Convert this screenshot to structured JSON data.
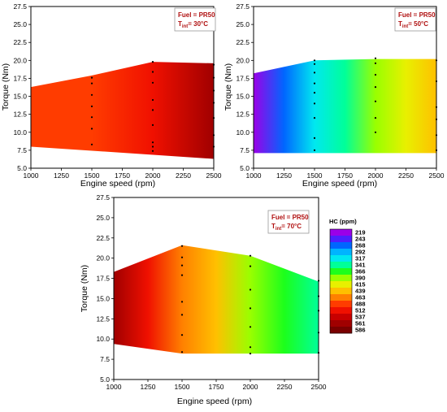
{
  "chart_data": [
    {
      "type": "heatmap",
      "subtype": "filled-contour",
      "xlabel": "Engine speed (rpm)",
      "ylabel": "Torque (Nm)",
      "xlim": [
        1000,
        2500
      ],
      "ylim": [
        5.0,
        27.5
      ],
      "xticks": [
        "1000",
        "1250",
        "1500",
        "1750",
        "2000",
        "2250",
        "2500"
      ],
      "yticks": [
        "5.0",
        "7.5",
        "10.0",
        "12.5",
        "15.0",
        "17.5",
        "20.0",
        "22.5",
        "25.0",
        "27.5"
      ],
      "annotation": {
        "fuel": "Fuel = PR50",
        "tint_main": "T",
        "tint_sub": "int",
        "tint_value": "= 30°C"
      },
      "region": [
        [
          1000,
          16.3
        ],
        [
          1500,
          17.9
        ],
        [
          2000,
          19.8
        ],
        [
          2500,
          19.6
        ],
        [
          2500,
          6.3
        ],
        [
          1000,
          8.0
        ]
      ],
      "color_nodes": [
        [
          1000,
          480
        ],
        [
          1500,
          497
        ],
        [
          2000,
          515
        ],
        [
          2500,
          568
        ]
      ],
      "points": [
        [
          1500,
          17.6
        ],
        [
          1500,
          16.8
        ],
        [
          1500,
          15.2
        ],
        [
          1500,
          13.6
        ],
        [
          1500,
          12.1
        ],
        [
          1500,
          10.5
        ],
        [
          1500,
          8.3
        ],
        [
          2000,
          19.8
        ],
        [
          2000,
          18.4
        ],
        [
          2000,
          16.9
        ],
        [
          2000,
          14.5
        ],
        [
          2000,
          13.1
        ],
        [
          2000,
          11.0
        ],
        [
          2000,
          8.6
        ],
        [
          2000,
          8.0
        ],
        [
          2000,
          7.4
        ],
        [
          2500,
          19.4
        ],
        [
          2500,
          17.6
        ],
        [
          2500,
          15.8
        ],
        [
          2500,
          14.1
        ],
        [
          2500,
          12.0
        ],
        [
          2500,
          9.6
        ],
        [
          2500,
          8.0
        ]
      ]
    },
    {
      "type": "heatmap",
      "subtype": "filled-contour",
      "xlabel": "Engine speed (rpm)",
      "ylabel": "Torque (Nm)",
      "xlim": [
        1000,
        2500
      ],
      "ylim": [
        5.0,
        27.5
      ],
      "xticks": [
        "1000",
        "1250",
        "1500",
        "1750",
        "2000",
        "2250",
        "2500"
      ],
      "yticks": [
        "5.0",
        "7.5",
        "10.0",
        "12.5",
        "15.0",
        "17.5",
        "20.0",
        "22.5",
        "25.0",
        "27.5"
      ],
      "annotation": {
        "fuel": "Fuel = PR50",
        "tint_main": "T",
        "tint_sub": "int",
        "tint_value": "= 50°C"
      },
      "region": [
        [
          1000,
          18.2
        ],
        [
          1500,
          20.0
        ],
        [
          2000,
          20.2
        ],
        [
          2500,
          20.2
        ],
        [
          2500,
          7.1
        ],
        [
          1000,
          7.1
        ]
      ],
      "color_nodes": [
        [
          1000,
          228
        ],
        [
          1250,
          262
        ],
        [
          1500,
          308
        ],
        [
          1750,
          350
        ],
        [
          2000,
          383
        ],
        [
          2250,
          412
        ],
        [
          2500,
          438
        ]
      ],
      "points": [
        [
          1500,
          20.0
        ],
        [
          1500,
          19.5
        ],
        [
          1500,
          18.3
        ],
        [
          1500,
          16.8
        ],
        [
          1500,
          15.5
        ],
        [
          1500,
          14.0
        ],
        [
          1500,
          12.0
        ],
        [
          1500,
          9.2
        ],
        [
          1500,
          7.5
        ],
        [
          2000,
          20.3
        ],
        [
          2000,
          19.6
        ],
        [
          2000,
          18.0
        ],
        [
          2000,
          16.3
        ],
        [
          2000,
          14.3
        ],
        [
          2000,
          12.0
        ],
        [
          2000,
          10.0
        ],
        [
          2500,
          20.0
        ],
        [
          2500,
          17.1
        ],
        [
          2500,
          13.5
        ],
        [
          2500,
          11.8
        ],
        [
          2500,
          9.6
        ],
        [
          2500,
          7.5
        ]
      ]
    },
    {
      "type": "heatmap",
      "subtype": "filled-contour",
      "xlabel": "Engine speed (rpm)",
      "ylabel": "Torque (Nm)",
      "xlim": [
        1000,
        2500
      ],
      "ylim": [
        5.0,
        27.5
      ],
      "xticks": [
        "1000",
        "1250",
        "1500",
        "1750",
        "2000",
        "2250",
        "2500"
      ],
      "yticks": [
        "5.0",
        "7.5",
        "10.0",
        "12.5",
        "15.0",
        "17.5",
        "20.0",
        "22.5",
        "25.0",
        "27.5"
      ],
      "annotation": {
        "fuel": "Fuel = PR50",
        "tint_main": "T",
        "tint_sub": "int",
        "tint_value": "= 70°C"
      },
      "region": [
        [
          1000,
          18.3
        ],
        [
          1500,
          21.6
        ],
        [
          2000,
          20.3
        ],
        [
          2500,
          17.1
        ],
        [
          2500,
          8.2
        ],
        [
          1500,
          8.2
        ],
        [
          1000,
          9.4
        ]
      ],
      "color_nodes": [
        [
          1000,
          570
        ],
        [
          1250,
          512
        ],
        [
          1500,
          468
        ],
        [
          1750,
          435
        ],
        [
          2000,
          398
        ],
        [
          2250,
          362
        ],
        [
          2500,
          335
        ]
      ],
      "points": [
        [
          1500,
          21.5
        ],
        [
          1500,
          20.1
        ],
        [
          1500,
          19.1
        ],
        [
          1500,
          17.9
        ],
        [
          1500,
          14.6
        ],
        [
          1500,
          13.0
        ],
        [
          1500,
          10.5
        ],
        [
          1500,
          8.4
        ],
        [
          2000,
          20.3
        ],
        [
          2000,
          19.0
        ],
        [
          2000,
          16.1
        ],
        [
          2000,
          13.8
        ],
        [
          2000,
          11.5
        ],
        [
          2000,
          9.0
        ],
        [
          2000,
          8.2
        ],
        [
          2500,
          17.2
        ],
        [
          2500,
          15.3
        ],
        [
          2500,
          13.5
        ],
        [
          2500,
          10.8
        ],
        [
          2500,
          8.3
        ]
      ]
    }
  ],
  "colorbar": {
    "title": "HC (ppm)",
    "levels": [
      "219",
      "243",
      "268",
      "292",
      "317",
      "341",
      "366",
      "390",
      "415",
      "439",
      "463",
      "488",
      "512",
      "537",
      "561",
      "586"
    ],
    "colors": [
      "#9b00e8",
      "#4d1fff",
      "#0066ff",
      "#00b4ff",
      "#00e8f0",
      "#00ff99",
      "#1cff1c",
      "#99ff00",
      "#e8f000",
      "#ffc000",
      "#ff8000",
      "#ff3c00",
      "#f01000",
      "#c80000",
      "#a00000",
      "#7a0000"
    ]
  }
}
